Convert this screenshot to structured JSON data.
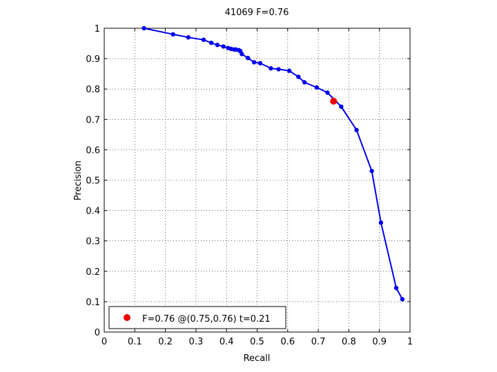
{
  "chart_data": {
    "type": "line",
    "title": "41069 F=0.76",
    "xlabel": "Recall",
    "ylabel": "Precision",
    "xlim": [
      0,
      1
    ],
    "ylim": [
      0,
      1
    ],
    "x_ticks": [
      0,
      0.1,
      0.2,
      0.3,
      0.4,
      0.5,
      0.6,
      0.7,
      0.8,
      0.9,
      1
    ],
    "y_ticks": [
      0,
      0.1,
      0.2,
      0.3,
      0.4,
      0.5,
      0.6,
      0.7,
      0.8,
      0.9,
      1
    ],
    "x_tick_labels": [
      "0",
      "0.1",
      "0.2",
      "0.3",
      "0.4",
      "0.5",
      "0.6",
      "0.7",
      "0.8",
      "0.9",
      "1"
    ],
    "y_tick_labels": [
      "0",
      "0.1",
      "0.2",
      "0.3",
      "0.4",
      "0.5",
      "0.6",
      "0.7",
      "0.8",
      "0.9",
      "1"
    ],
    "grid": true,
    "series": [
      {
        "color": "#0000ee",
        "x": [
          0.13,
          0.225,
          0.275,
          0.325,
          0.35,
          0.37,
          0.39,
          0.405,
          0.415,
          0.425,
          0.43,
          0.44,
          0.445,
          0.45,
          0.47,
          0.49,
          0.51,
          0.545,
          0.57,
          0.605,
          0.635,
          0.655,
          0.695,
          0.73,
          0.775,
          0.825,
          0.875,
          0.905,
          0.955,
          0.975
        ],
        "y": [
          1.0,
          0.98,
          0.97,
          0.962,
          0.952,
          0.945,
          0.94,
          0.935,
          0.932,
          0.93,
          0.93,
          0.928,
          0.925,
          0.915,
          0.902,
          0.888,
          0.885,
          0.868,
          0.865,
          0.86,
          0.84,
          0.822,
          0.805,
          0.788,
          0.742,
          0.665,
          0.53,
          0.36,
          0.145,
          0.108
        ]
      }
    ],
    "best_point": {
      "x": 0.75,
      "y": 0.76,
      "color": "#ee0000"
    },
    "legend": {
      "position": "bottom-left",
      "label": "F=0.76 @(0.75,0.76) t=0.21"
    }
  }
}
